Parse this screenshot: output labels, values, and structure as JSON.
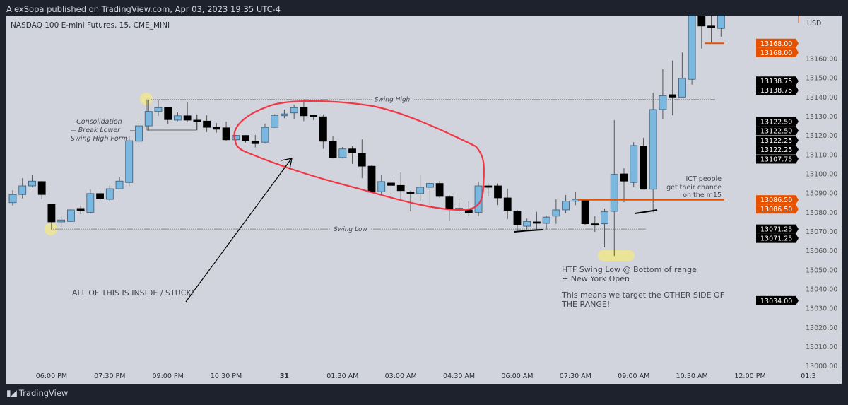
{
  "header": {
    "published": "AlexSopa published on TradingView.com, Apr 03, 2023 19:35 UTC-4"
  },
  "chart": {
    "symbol": "NASDAQ 100 E-mini Futures, 15, CME_MINI",
    "currency": "USD",
    "colors": {
      "bg": "#d1d4dc",
      "bull": "#7ab8e0",
      "bear": "#000000",
      "orange": "#e65100",
      "red_ellipse": "#f23645",
      "highlight": "#f0e68c"
    }
  },
  "chart_data": {
    "type": "candlestick",
    "ylim": [
      13000,
      13190
    ],
    "y_ticks": [
      "13160.00",
      "13150.00",
      "13140.00",
      "13130.00",
      "13120.00",
      "13110.00",
      "13100.00",
      "13090.00",
      "13080.00",
      "13070.00",
      "13060.00",
      "13050.00",
      "13040.00",
      "13030.00",
      "13020.00",
      "13010.00",
      "13000.00"
    ],
    "x_ticks": [
      {
        "label": "06:00 PM",
        "bar": 4
      },
      {
        "label": "07:30 PM",
        "bar": 10
      },
      {
        "label": "09:00 PM",
        "bar": 16
      },
      {
        "label": "10:30 PM",
        "bar": 22
      },
      {
        "label": "31",
        "bar": 28,
        "bold": true
      },
      {
        "label": "01:30 AM",
        "bar": 34
      },
      {
        "label": "03:00 AM",
        "bar": 40
      },
      {
        "label": "04:30 AM",
        "bar": 46
      },
      {
        "label": "06:00 AM",
        "bar": 52
      },
      {
        "label": "07:30 AM",
        "bar": 58
      },
      {
        "label": "09:00 AM",
        "bar": 64
      },
      {
        "label": "10:30 AM",
        "bar": 70
      },
      {
        "label": "12:00 PM",
        "bar": 76
      },
      {
        "label": "01:3",
        "bar": 82
      }
    ],
    "ohlc": [
      [
        13085,
        13091.5,
        13083.5,
        13089.25
      ],
      [
        13089.25,
        13097.75,
        13087.25,
        13093.75
      ],
      [
        13093.75,
        13099.25,
        13093,
        13096.25
      ],
      [
        13096,
        13096.25,
        13086.75,
        13089.25
      ],
      [
        13084.25,
        13084.25,
        13071.25,
        13075
      ],
      [
        13075,
        13078.25,
        13072.5,
        13076
      ],
      [
        13075.25,
        13081.5,
        13075,
        13081.25
      ],
      [
        13082,
        13083.5,
        13079,
        13081
      ],
      [
        13080,
        13092,
        13079.5,
        13089.75
      ],
      [
        13089.75,
        13091.25,
        13086,
        13087.25
      ],
      [
        13086.75,
        13094,
        13085.75,
        13092.25
      ],
      [
        13092.25,
        13098.5,
        13092,
        13096.25
      ],
      [
        13095.5,
        13119.5,
        13093.5,
        13117.25
      ],
      [
        13117,
        13126.5,
        13116.25,
        13125
      ],
      [
        13125,
        13138.75,
        13122.5,
        13132.5
      ],
      [
        13132.5,
        13138.75,
        13130.25,
        13134.5
      ],
      [
        13134.5,
        13134.5,
        13125.75,
        13128.25
      ],
      [
        13128,
        13132,
        13127.5,
        13130.25
      ],
      [
        13130.25,
        13137.5,
        13127,
        13128
      ],
      [
        13128,
        13131,
        13122.75,
        13127.5
      ],
      [
        13127.5,
        13130.5,
        13121.75,
        13124.25
      ],
      [
        13124.25,
        13126.5,
        13121.5,
        13123.25
      ],
      [
        13124,
        13127.25,
        13117,
        13117.75
      ],
      [
        13117.75,
        13120.25,
        13117,
        13120
      ],
      [
        13120,
        13120.25,
        13116.25,
        13117.25
      ],
      [
        13117,
        13120.25,
        13113.75,
        13115.75
      ],
      [
        13116.5,
        13126.25,
        13115.75,
        13124.25
      ],
      [
        13124.25,
        13131,
        13124,
        13130.5
      ],
      [
        13130.25,
        13133.5,
        13129,
        13131.25
      ],
      [
        13131.75,
        13136,
        13128.75,
        13134.5
      ],
      [
        13134.5,
        13138.25,
        13127.5,
        13130.25
      ],
      [
        13130.5,
        13130.5,
        13128,
        13130.25
      ],
      [
        13129.75,
        13131,
        13113,
        13117
      ],
      [
        13117,
        13119.5,
        13108,
        13108.5
      ],
      [
        13108.5,
        13114,
        13108,
        13113
      ],
      [
        13113,
        13114.5,
        13105.25,
        13111
      ],
      [
        13110.75,
        13118,
        13097.75,
        13104
      ],
      [
        13104,
        13104.5,
        13090.5,
        13090.5
      ],
      [
        13090.75,
        13099.25,
        13089.25,
        13096
      ],
      [
        13095.25,
        13097,
        13089.75,
        13094
      ],
      [
        13094,
        13100.75,
        13085.75,
        13091.25
      ],
      [
        13090.5,
        13091.25,
        13080.5,
        13089.75
      ],
      [
        13089.75,
        13099.25,
        13085.75,
        13093
      ],
      [
        13093,
        13096,
        13082,
        13095
      ],
      [
        13095,
        13096.25,
        13087.5,
        13088.25
      ],
      [
        13088,
        13089,
        13075.75,
        13082
      ],
      [
        13082,
        13087.25,
        13079,
        13081.25
      ],
      [
        13081.25,
        13085.75,
        13078.25,
        13079.75
      ],
      [
        13080,
        13096,
        13078,
        13093.75
      ],
      [
        13093.75,
        13095,
        13088.25,
        13093
      ],
      [
        13093.75,
        13095,
        13083.75,
        13087.5
      ],
      [
        13087.5,
        13092.25,
        13076.5,
        13081
      ],
      [
        13080.5,
        13081.25,
        13070.25,
        13073.5
      ],
      [
        13072.75,
        13076.75,
        13071,
        13075.25
      ],
      [
        13075,
        13080.25,
        13071,
        13074.5
      ],
      [
        13074.25,
        13078.25,
        13071,
        13077.5
      ],
      [
        13078,
        13086.75,
        13074,
        13081.25
      ],
      [
        13081.25,
        13089,
        13079.5,
        13085.75
      ],
      [
        13085.75,
        13090.5,
        13083.75,
        13086.75
      ],
      [
        13086.5,
        13086.5,
        13073.5,
        13074
      ],
      [
        13074,
        13078,
        13069.75,
        13073.5
      ],
      [
        13074,
        13082,
        13061.75,
        13080.25
      ],
      [
        13080.5,
        13128,
        13057.25,
        13099.75
      ],
      [
        13100,
        13103,
        13085.25,
        13096.25
      ],
      [
        13095.5,
        13116.5,
        13093,
        13114.75
      ],
      [
        13114.5,
        13118.75,
        13092,
        13092
      ],
      [
        13092,
        13142.25,
        13080,
        13133.5
      ],
      [
        13133.5,
        13154.5,
        13128.75,
        13140.75
      ],
      [
        13141.25,
        13159,
        13130.5,
        13140
      ],
      [
        13140,
        13163.25,
        13140,
        13149.75
      ],
      [
        13149.25,
        13185,
        13146.5,
        13182.5
      ],
      [
        13185,
        13186,
        13165.25,
        13177
      ],
      [
        13177,
        13183,
        13168.5,
        13176.5
      ],
      [
        13175.75,
        13185,
        13171.5,
        13183
      ]
    ],
    "price_labels": [
      {
        "text": "13168.00",
        "price": 13168,
        "color": "orange"
      },
      {
        "text": "13168.00",
        "price": 13168,
        "color": "orange",
        "stack": 1
      },
      {
        "text": "13138.75",
        "price": 13138.75,
        "color": "black",
        "stack": -2
      },
      {
        "text": "13138.75",
        "price": 13138.75,
        "color": "black",
        "stack": -1
      },
      {
        "text": "13122.50",
        "price": 13122.5,
        "color": "black",
        "stack": -1
      },
      {
        "text": "13122.50",
        "price": 13122.5,
        "color": "black",
        "stack": 0
      },
      {
        "text": "13122.25",
        "price": 13122.25,
        "color": "black",
        "stack": 1
      },
      {
        "text": "13122.25",
        "price": 13122.25,
        "color": "black",
        "stack": 2
      },
      {
        "text": "13107.75",
        "price": 13107.75,
        "color": "black"
      },
      {
        "text": "13086.50",
        "price": 13086.5,
        "color": "orange"
      },
      {
        "text": "13086.50",
        "price": 13086.5,
        "color": "orange",
        "stack": 1
      },
      {
        "text": "13071.25",
        "price": 13071.25,
        "color": "black"
      },
      {
        "text": "13071.25",
        "price": 13071.25,
        "color": "black",
        "stack": 1
      },
      {
        "text": "13034.00",
        "price": 13034,
        "color": "black"
      }
    ],
    "levels": {
      "swing_high": 13138.75,
      "swing_low": 13071.25,
      "ict_level": 13086.5,
      "top_level": 13168
    }
  },
  "annotations": {
    "swing_high": "Swing High",
    "swing_low": "Swing Low",
    "consolidation": [
      "Consolidation",
      "Break Lower",
      "Swing High Form"
    ],
    "inside": "ALL OF THIS IS INSIDE / STUCK!",
    "htf": [
      "HTF Swing Low @ Bottom of range",
      "+ New York Open"
    ],
    "target": [
      "This means we target the OTHER SIDE OF",
      "THE RANGE!"
    ],
    "ict": [
      "ICT people",
      "get their chance",
      "on the m15"
    ]
  },
  "footer": {
    "brand": "TradingView",
    "logo_mark": "TV"
  }
}
